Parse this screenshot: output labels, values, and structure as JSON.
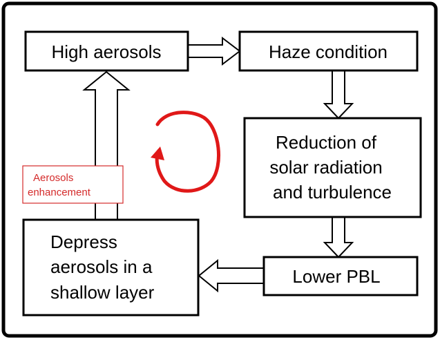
{
  "nodes": [
    {
      "lines": [
        "High aerosols"
      ]
    },
    {
      "lines": [
        "Haze condition"
      ]
    },
    {
      "lines": [
        "Reduction of",
        "solar radiation",
        "and turbulence"
      ]
    },
    {
      "lines": [
        "Lower PBL"
      ]
    },
    {
      "lines": [
        "Depress",
        "aerosols in a",
        "shallow layer"
      ]
    }
  ],
  "annotation": {
    "lines": [
      "Aerosols",
      "enhancement"
    ]
  }
}
